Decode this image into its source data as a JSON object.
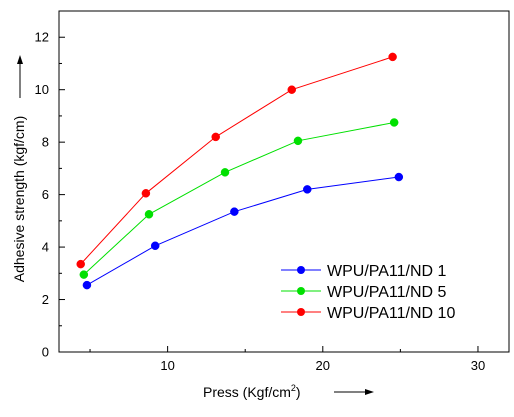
{
  "chart_data": {
    "type": "line",
    "title": "",
    "xlabel": "Press (Kgf/cm",
    "xlabel_sup": "2",
    "xlabel_suffix": ")",
    "ylabel": "Adhesive strength (kgf/cm)",
    "xlim": [
      3,
      32
    ],
    "ylim": [
      0,
      13
    ],
    "xticks": [
      10,
      20,
      30
    ],
    "yticks": [
      0,
      2,
      4,
      6,
      8,
      10,
      12
    ],
    "grid": false,
    "legend_position": "bottom-right",
    "series": [
      {
        "name": "WPU/PA11/ND 1",
        "color": "#0000ff",
        "x": [
          4.8,
          9.2,
          14.3,
          19.0,
          24.9
        ],
        "y": [
          2.55,
          4.05,
          5.35,
          6.2,
          6.67
        ]
      },
      {
        "name": "WPU/PA11/ND 5",
        "color": "#00e000",
        "x": [
          4.6,
          8.8,
          13.7,
          18.4,
          24.6
        ],
        "y": [
          2.95,
          5.25,
          6.85,
          8.05,
          8.75
        ]
      },
      {
        "name": "WPU/PA11/ND 10",
        "color": "#ff0000",
        "x": [
          4.4,
          8.6,
          13.1,
          18.0,
          24.5
        ],
        "y": [
          3.35,
          6.05,
          8.2,
          10.0,
          11.25
        ]
      }
    ]
  }
}
